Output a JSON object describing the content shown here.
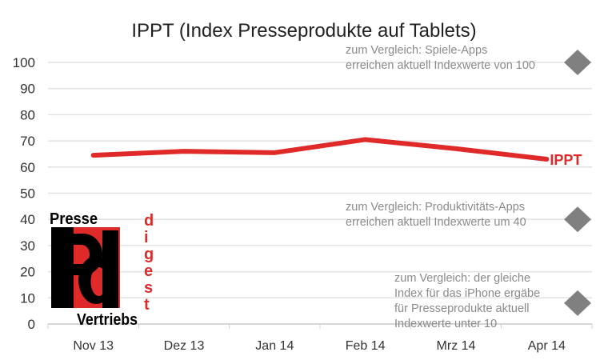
{
  "chart_data": {
    "type": "line",
    "title": "IPPT (Index Presseprodukte auf Tablets)",
    "categories": [
      "Nov 13",
      "Dez 13",
      "Jan 14",
      "Feb 14",
      "Mrz 14",
      "Apr 14"
    ],
    "series": [
      {
        "name": "IPPT",
        "values": [
          64.5,
          66,
          65.5,
          70.5,
          67,
          63
        ],
        "color": "#e02a2a"
      }
    ],
    "ylim": [
      0,
      100
    ],
    "yticks": [
      0,
      10,
      20,
      30,
      40,
      50,
      60,
      70,
      80,
      90,
      100
    ],
    "grid": true,
    "comparisons": [
      {
        "value": 100,
        "lines": [
          "zum Vergleich: Spiele-Apps",
          "erreichen aktuell Indexwerte von 100"
        ]
      },
      {
        "value": 40,
        "lines": [
          "zum Vergleich: Produktivitäts-Apps",
          "erreichen aktuell Indexwerte um 40"
        ]
      },
      {
        "value": 8,
        "lines": [
          "zum Vergleich: der gleiche",
          "Index für das iPhone ergäbe",
          "für Presseprodukte aktuell",
          "Indexwerte unter 10"
        ]
      }
    ],
    "marker_color": "#808080"
  },
  "logo": {
    "top": "Presse",
    "bottom": "Vertriebs",
    "side": "digest",
    "letters": "Pd"
  }
}
